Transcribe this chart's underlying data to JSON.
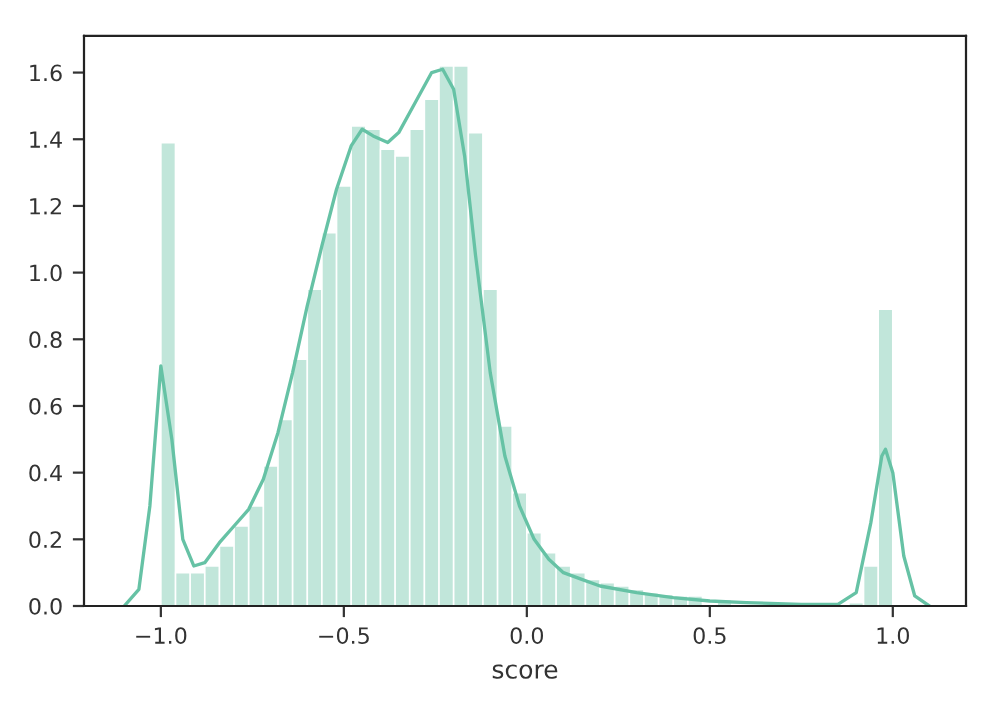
{
  "chart_data": {
    "type": "histogram",
    "xlabel": "score",
    "series": [
      {
        "color": "#66c2a5",
        "bins": [
          -1.0,
          -0.96,
          -0.92,
          -0.88,
          -0.84,
          -0.8,
          -0.76,
          -0.72,
          -0.68,
          -0.64,
          -0.6,
          -0.56,
          -0.52,
          -0.48,
          -0.44,
          -0.4,
          -0.36,
          -0.32,
          -0.28,
          -0.24,
          -0.2,
          -0.16,
          -0.12,
          -0.08,
          -0.04,
          0.0,
          0.04,
          0.08,
          0.12,
          0.16,
          0.2,
          0.24,
          0.28,
          0.32,
          0.36,
          0.4,
          0.44,
          0.48,
          0.52,
          0.56,
          0.6,
          0.64,
          0.68,
          0.72,
          0.76,
          0.8,
          0.84,
          0.88,
          0.92,
          0.96,
          1.0
        ],
        "values": [
          1.39,
          0.1,
          0.1,
          0.12,
          0.18,
          0.24,
          0.3,
          0.42,
          0.56,
          0.74,
          0.95,
          1.12,
          1.26,
          1.44,
          1.43,
          1.37,
          1.35,
          1.43,
          1.52,
          1.62,
          1.62,
          1.42,
          0.95,
          0.54,
          0.34,
          0.22,
          0.16,
          0.12,
          0.1,
          0.08,
          0.07,
          0.06,
          0.05,
          0.04,
          0.035,
          0.03,
          0.03,
          null,
          0.02,
          null,
          null,
          null,
          null,
          null,
          null,
          null,
          null,
          0.01,
          0.12,
          0.89
        ]
      },
      {
        "type": "line",
        "color": "#66c2a5",
        "x": [
          -1.1,
          -1.06,
          -1.03,
          -1.0,
          -0.97,
          -0.94,
          -0.91,
          -0.88,
          -0.84,
          -0.8,
          -0.76,
          -0.72,
          -0.68,
          -0.64,
          -0.6,
          -0.56,
          -0.52,
          -0.48,
          -0.45,
          -0.42,
          -0.38,
          -0.35,
          -0.3,
          -0.26,
          -0.23,
          -0.2,
          -0.17,
          -0.14,
          -0.1,
          -0.06,
          -0.02,
          0.02,
          0.06,
          0.1,
          0.15,
          0.2,
          0.3,
          0.4,
          0.5,
          0.6,
          0.75,
          0.85,
          0.9,
          0.94,
          0.97,
          0.98,
          1.0,
          1.03,
          1.06,
          1.1
        ],
        "values": [
          0,
          0.05,
          0.3,
          0.72,
          0.5,
          0.2,
          0.12,
          0.13,
          0.19,
          0.24,
          0.29,
          0.38,
          0.52,
          0.7,
          0.9,
          1.08,
          1.25,
          1.38,
          1.43,
          1.41,
          1.39,
          1.42,
          1.52,
          1.6,
          1.61,
          1.55,
          1.35,
          1.05,
          0.7,
          0.45,
          0.3,
          0.2,
          0.14,
          0.1,
          0.08,
          0.06,
          0.04,
          0.025,
          0.015,
          0.01,
          0.005,
          0.005,
          0.04,
          0.25,
          0.45,
          0.47,
          0.4,
          0.15,
          0.03,
          0
        ]
      }
    ],
    "xlim": [
      -1.21,
      1.2
    ],
    "ylim": [
      0,
      1.71
    ],
    "xticks": [
      {
        "value": -1.0,
        "label": "−1.0"
      },
      {
        "value": -0.5,
        "label": "−0.5"
      },
      {
        "value": 0.0,
        "label": "0.0"
      },
      {
        "value": 0.5,
        "label": "0.5"
      },
      {
        "value": 1.0,
        "label": "1.0"
      }
    ],
    "yticks": [
      {
        "value": 0.0,
        "label": "0.0"
      },
      {
        "value": 0.2,
        "label": "0.2"
      },
      {
        "value": 0.4,
        "label": "0.4"
      },
      {
        "value": 0.6,
        "label": "0.6"
      },
      {
        "value": 0.8,
        "label": "0.8"
      },
      {
        "value": 1.0,
        "label": "1.0"
      },
      {
        "value": 1.2,
        "label": "1.2"
      },
      {
        "value": 1.4,
        "label": "1.4"
      },
      {
        "value": 1.6,
        "label": "1.6"
      }
    ],
    "grid": false
  }
}
